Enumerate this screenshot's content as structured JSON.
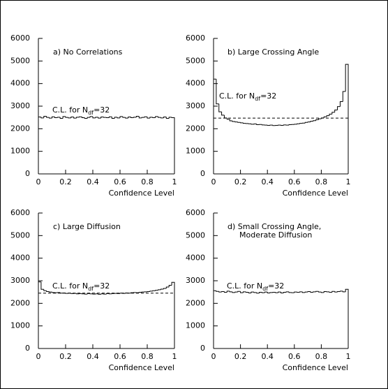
{
  "chart_data": [
    {
      "type": "histogram",
      "title": [
        "a) No Correlations"
      ],
      "x_label": "Confidence Level",
      "cl_label": {
        "text": "C.L. for N",
        "sub": "df",
        "suffix": "=32"
      },
      "bins": [
        0,
        0.02,
        0.04,
        0.06,
        0.08,
        0.1,
        0.12,
        0.14,
        0.16,
        0.18,
        0.2,
        0.22,
        0.24,
        0.26,
        0.28,
        0.3,
        0.32,
        0.34,
        0.36,
        0.38,
        0.4,
        0.42,
        0.44,
        0.46,
        0.48,
        0.5,
        0.52,
        0.54,
        0.56,
        0.58,
        0.6,
        0.62,
        0.64,
        0.66,
        0.68,
        0.7,
        0.72,
        0.74,
        0.76,
        0.78,
        0.8,
        0.82,
        0.84,
        0.86,
        0.88,
        0.9,
        0.92,
        0.94,
        0.96,
        0.98,
        1
      ],
      "values": [
        2520,
        2480,
        2550,
        2500,
        2470,
        2530,
        2490,
        2510,
        2460,
        2540,
        2500,
        2480,
        2520,
        2470,
        2510,
        2530,
        2490,
        2460,
        2500,
        2540,
        2480,
        2510,
        2470,
        2520,
        2500,
        2490,
        2530,
        2460,
        2510,
        2480,
        2540,
        2500,
        2470,
        2520,
        2490,
        2510,
        2550,
        2480,
        2500,
        2530,
        2470,
        2510,
        2490,
        2540,
        2500,
        2480,
        2520,
        2460,
        2510,
        2490
      ],
      "color": "#000000",
      "xlim": [
        0,
        1
      ],
      "ylim": [
        0,
        6000
      ],
      "xticks": [
        0,
        0.2,
        0.4,
        0.6,
        0.8,
        1
      ],
      "yticks": [
        0,
        1000,
        2000,
        3000,
        4000,
        5000,
        6000
      ]
    },
    {
      "type": "histogram",
      "title": [
        "b) Large Crossing Angle"
      ],
      "x_label": "Confidence Level",
      "cl_label": {
        "text": "C.L. for N",
        "sub": "df",
        "suffix": "=32"
      },
      "bins": [
        0,
        0.02,
        0.04,
        0.06,
        0.08,
        0.1,
        0.12,
        0.14,
        0.16,
        0.18,
        0.2,
        0.22,
        0.24,
        0.26,
        0.28,
        0.3,
        0.32,
        0.34,
        0.36,
        0.38,
        0.4,
        0.42,
        0.44,
        0.46,
        0.48,
        0.5,
        0.52,
        0.54,
        0.56,
        0.58,
        0.6,
        0.62,
        0.64,
        0.66,
        0.68,
        0.7,
        0.72,
        0.74,
        0.76,
        0.78,
        0.8,
        0.82,
        0.84,
        0.86,
        0.88,
        0.9,
        0.92,
        0.94,
        0.96,
        0.98,
        1
      ],
      "values": [
        4200,
        3100,
        2750,
        2600,
        2480,
        2420,
        2350,
        2320,
        2300,
        2280,
        2260,
        2240,
        2230,
        2220,
        2200,
        2210,
        2180,
        2190,
        2170,
        2160,
        2150,
        2160,
        2140,
        2150,
        2160,
        2150,
        2170,
        2160,
        2180,
        2190,
        2200,
        2220,
        2240,
        2250,
        2280,
        2300,
        2330,
        2360,
        2400,
        2440,
        2480,
        2530,
        2580,
        2650,
        2730,
        2830,
        2980,
        3200,
        3650,
        4850
      ],
      "reference_line": 2470,
      "color": "#000000",
      "xlim": [
        0,
        1
      ],
      "ylim": [
        0,
        6000
      ],
      "xticks": [
        0,
        0.2,
        0.4,
        0.6,
        0.8,
        1
      ],
      "yticks": [
        0,
        1000,
        2000,
        3000,
        4000,
        5000,
        6000
      ]
    },
    {
      "type": "histogram",
      "title": [
        "c) Large Diffusion"
      ],
      "x_label": "Confidence Level",
      "cl_label": {
        "text": "C.L. for N",
        "sub": "df",
        "suffix": "=32"
      },
      "bins": [
        0,
        0.02,
        0.04,
        0.06,
        0.08,
        0.1,
        0.12,
        0.14,
        0.16,
        0.18,
        0.2,
        0.22,
        0.24,
        0.26,
        0.28,
        0.3,
        0.32,
        0.34,
        0.36,
        0.38,
        0.4,
        0.42,
        0.44,
        0.46,
        0.48,
        0.5,
        0.52,
        0.54,
        0.56,
        0.58,
        0.6,
        0.62,
        0.64,
        0.66,
        0.68,
        0.7,
        0.72,
        0.74,
        0.76,
        0.78,
        0.8,
        0.82,
        0.84,
        0.86,
        0.88,
        0.9,
        0.92,
        0.94,
        0.96,
        0.98,
        1
      ],
      "values": [
        2950,
        2620,
        2560,
        2520,
        2500,
        2480,
        2470,
        2480,
        2450,
        2460,
        2440,
        2450,
        2430,
        2440,
        2420,
        2430,
        2420,
        2410,
        2430,
        2420,
        2410,
        2420,
        2400,
        2420,
        2410,
        2430,
        2420,
        2430,
        2440,
        2430,
        2450,
        2440,
        2460,
        2450,
        2470,
        2480,
        2470,
        2490,
        2500,
        2510,
        2520,
        2540,
        2560,
        2580,
        2600,
        2630,
        2660,
        2720,
        2800,
        2930
      ],
      "reference_line": 2450,
      "color": "#000000",
      "xlim": [
        0,
        1
      ],
      "ylim": [
        0,
        6000
      ],
      "xticks": [
        0,
        0.2,
        0.4,
        0.6,
        0.8,
        1
      ],
      "yticks": [
        0,
        1000,
        2000,
        3000,
        4000,
        5000,
        6000
      ]
    },
    {
      "type": "histogram",
      "title": [
        "d) Small Crossing Angle,",
        "Moderate Diffusion"
      ],
      "x_label": "Confidence Level",
      "cl_label": {
        "text": "C.L. for N",
        "sub": "df",
        "suffix": "=32"
      },
      "bins": [
        0,
        0.02,
        0.04,
        0.06,
        0.08,
        0.1,
        0.12,
        0.14,
        0.16,
        0.18,
        0.2,
        0.22,
        0.24,
        0.26,
        0.28,
        0.3,
        0.32,
        0.34,
        0.36,
        0.38,
        0.4,
        0.42,
        0.44,
        0.46,
        0.48,
        0.5,
        0.52,
        0.54,
        0.56,
        0.58,
        0.6,
        0.62,
        0.64,
        0.66,
        0.68,
        0.7,
        0.72,
        0.74,
        0.76,
        0.78,
        0.8,
        0.82,
        0.84,
        0.86,
        0.88,
        0.9,
        0.92,
        0.94,
        0.96,
        0.98,
        1
      ],
      "values": [
        2560,
        2530,
        2500,
        2520,
        2490,
        2540,
        2510,
        2480,
        2500,
        2530,
        2470,
        2510,
        2490,
        2460,
        2500,
        2480,
        2450,
        2490,
        2470,
        2500,
        2460,
        2480,
        2490,
        2470,
        2500,
        2460,
        2490,
        2510,
        2480,
        2470,
        2500,
        2490,
        2510,
        2480,
        2500,
        2520,
        2490,
        2510,
        2530,
        2500,
        2480,
        2520,
        2510,
        2490,
        2530,
        2500,
        2520,
        2540,
        2510,
        2620
      ],
      "color": "#000000",
      "xlim": [
        0,
        1
      ],
      "ylim": [
        0,
        6000
      ],
      "xticks": [
        0,
        0.2,
        0.4,
        0.6,
        0.8,
        1
      ],
      "yticks": [
        0,
        1000,
        2000,
        3000,
        4000,
        5000,
        6000
      ]
    }
  ]
}
